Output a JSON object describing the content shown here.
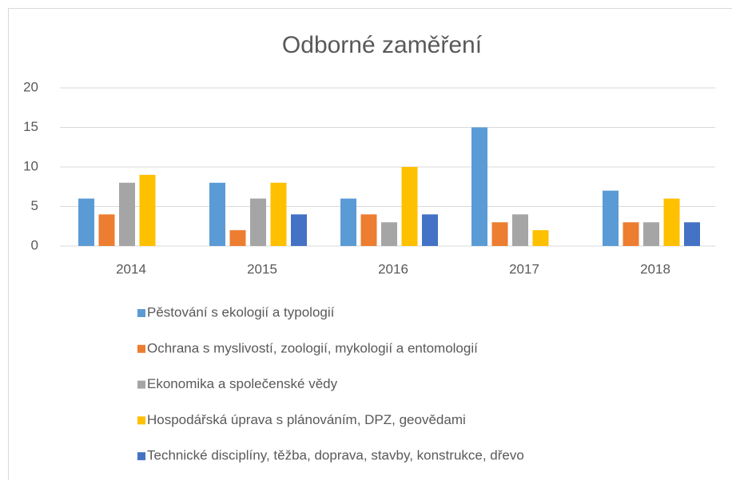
{
  "chart_data": {
    "type": "bar",
    "title": "Odborné zaměření",
    "categories": [
      "2014",
      "2015",
      "2016",
      "2017",
      "2018"
    ],
    "series": [
      {
        "name": "Pěstování s ekologií a typologií",
        "color": "#5b9bd5",
        "values": [
          6,
          8,
          6,
          15,
          7
        ]
      },
      {
        "name": "Ochrana s myslivostí, zoologií, mykologií a entomologií",
        "color": "#ed7d31",
        "values": [
          4,
          2,
          4,
          3,
          3
        ]
      },
      {
        "name": "Ekonomika a společenské vědy",
        "color": "#a5a5a5",
        "values": [
          8,
          6,
          3,
          4,
          3
        ]
      },
      {
        "name": "Hospodářská úprava s plánováním, DPZ, geovědami",
        "color": "#ffc000",
        "values": [
          9,
          8,
          10,
          2,
          6
        ]
      },
      {
        "name": "Technické disciplíny, těžba, doprava, stavby, konstrukce, dřevo",
        "color": "#4472c4",
        "values": [
          0,
          4,
          4,
          0,
          3
        ]
      }
    ],
    "ylim": [
      0,
      20
    ],
    "yticks": [
      0,
      5,
      10,
      15,
      20
    ],
    "grid": true,
    "legend": "bottom"
  }
}
